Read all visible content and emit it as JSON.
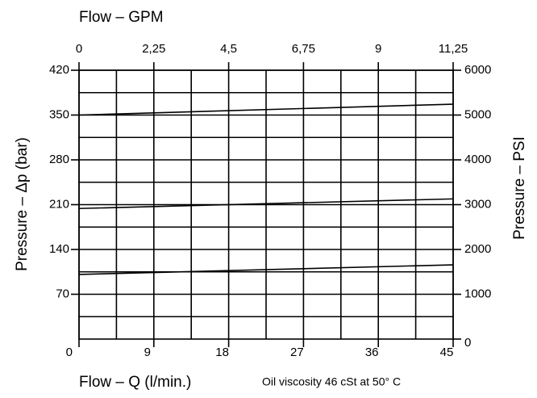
{
  "chart_data": {
    "type": "line",
    "x2_label": "Flow  –  GPM",
    "x_label": "Flow – Q (l/min.)",
    "y_label": "Pressure  –  Δp (bar)",
    "y2_label": "Pressure  –  PSI",
    "annotation": "Oil viscosity 46 cSt at 50° C",
    "x": [
      0,
      45
    ],
    "xlim": [
      0,
      45
    ],
    "xticks": [
      0,
      9,
      18,
      27,
      36,
      45
    ],
    "x2lim": [
      0,
      11.25
    ],
    "x2ticks": [
      0,
      {
        "value": 2.25,
        "label": "2,25"
      },
      {
        "value": 4.5,
        "label": "4,5"
      },
      {
        "value": 6.75,
        "label": "6,75"
      },
      9,
      {
        "value": 11.25,
        "label": "11,25"
      }
    ],
    "ylim": [
      0,
      420
    ],
    "yticks": [
      70,
      140,
      210,
      280,
      350,
      420
    ],
    "y2lim": [
      0,
      6000
    ],
    "y2ticks": [
      0,
      1000,
      2000,
      3000,
      4000,
      5000,
      6000
    ],
    "grid": true,
    "series": [
      {
        "color": "#000000",
        "values": [
          350,
          367
        ]
      },
      {
        "color": "#000000",
        "values": [
          204,
          219
        ]
      },
      {
        "color": "#000000",
        "values": [
          101,
          116
        ]
      }
    ]
  }
}
